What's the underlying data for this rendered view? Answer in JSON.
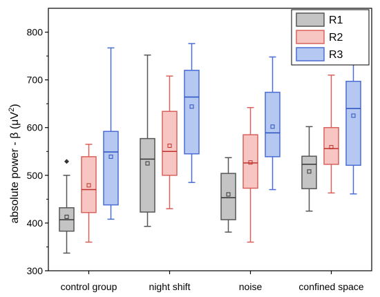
{
  "chart_data": {
    "type": "box",
    "ylabel_main": "absolute power - β (μV",
    "ylabel_sup": "2",
    "ylabel_close": ")",
    "ylim": [
      300,
      850
    ],
    "yticks": [
      300,
      400,
      500,
      600,
      700,
      800
    ],
    "legend_position": "top-right",
    "categories": [
      "control group",
      "night shift",
      "noise",
      "confined space"
    ],
    "series": [
      {
        "name": "R1",
        "colors": {
          "fill": "#c4c4c4",
          "stroke": "#555555",
          "dark": "#333333"
        },
        "boxes": [
          {
            "min": 337,
            "q1": 383,
            "median": 407,
            "q3": 432,
            "max": 500,
            "mean": 413,
            "outliers": [
              529
            ]
          },
          {
            "min": 393,
            "q1": 423,
            "median": 534,
            "q3": 577,
            "max": 752,
            "mean": 525,
            "outliers": []
          },
          {
            "min": 381,
            "q1": 407,
            "median": 453,
            "q3": 504,
            "max": 537,
            "mean": 460,
            "outliers": []
          },
          {
            "min": 425,
            "q1": 472,
            "median": 523,
            "q3": 540,
            "max": 602,
            "mean": 508,
            "outliers": []
          }
        ]
      },
      {
        "name": "R2",
        "colors": {
          "fill": "#f8c6c2",
          "stroke": "#d9605a",
          "dark": "#c0302b"
        },
        "boxes": [
          {
            "min": 360,
            "q1": 422,
            "median": 470,
            "q3": 539,
            "max": 565,
            "mean": 479,
            "outliers": []
          },
          {
            "min": 430,
            "q1": 500,
            "median": 550,
            "q3": 634,
            "max": 708,
            "mean": 562,
            "outliers": []
          },
          {
            "min": 360,
            "q1": 473,
            "median": 526,
            "q3": 585,
            "max": 642,
            "mean": 527,
            "outliers": []
          },
          {
            "min": 463,
            "q1": 523,
            "median": 556,
            "q3": 600,
            "max": 710,
            "mean": 559,
            "outliers": []
          }
        ]
      },
      {
        "name": "R3",
        "colors": {
          "fill": "#b5c8f2",
          "stroke": "#4a6cd4",
          "dark": "#2a4fc0"
        },
        "boxes": [
          {
            "min": 408,
            "q1": 438,
            "median": 549,
            "q3": 592,
            "max": 767,
            "mean": 539,
            "outliers": []
          },
          {
            "min": 485,
            "q1": 545,
            "median": 664,
            "q3": 720,
            "max": 776,
            "mean": 644,
            "outliers": []
          },
          {
            "min": 470,
            "q1": 539,
            "median": 589,
            "q3": 674,
            "max": 748,
            "mean": 602,
            "outliers": []
          },
          {
            "min": 461,
            "q1": 521,
            "median": 640,
            "q3": 697,
            "max": 780,
            "mean": 625,
            "outliers": []
          }
        ]
      }
    ]
  }
}
